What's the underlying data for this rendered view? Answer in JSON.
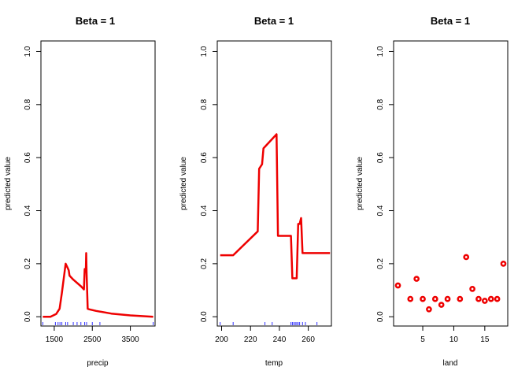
{
  "chart_data": [
    {
      "type": "line",
      "title": "Beta = 1",
      "xlabel": "precip",
      "ylabel": "predicted value",
      "xlim": [
        1150,
        4150
      ],
      "ylim": [
        -0.035,
        1.04
      ],
      "xticks": [
        1500,
        2500,
        3500
      ],
      "yticks": [
        0.0,
        0.2,
        0.4,
        0.6,
        0.8,
        1.0
      ],
      "ytick_labels": [
        "0.0",
        "0.2",
        "0.4",
        "0.6",
        "0.8",
        "1.0"
      ],
      "series": [
        {
          "x": [
            1200,
            1400,
            1550,
            1640,
            1700,
            1800,
            1850,
            1880,
            1900,
            2000,
            2200,
            2280,
            2300,
            2310,
            2330,
            2340,
            2350,
            2380,
            2420,
            2600,
            3000,
            3500,
            4100
          ],
          "y": [
            0.0,
            0.0,
            0.01,
            0.03,
            0.09,
            0.2,
            0.185,
            0.175,
            0.155,
            0.14,
            0.115,
            0.103,
            0.18,
            0.18,
            0.17,
            0.24,
            0.165,
            0.03,
            0.028,
            0.022,
            0.012,
            0.005,
            0.0
          ]
        }
      ],
      "rug": [
        1200,
        1530,
        1600,
        1650,
        1700,
        1800,
        1850,
        2000,
        2100,
        2200,
        2300,
        2350,
        2500,
        2700,
        4100
      ]
    },
    {
      "type": "line",
      "title": "Beta = 1",
      "xlabel": "temp",
      "ylabel": "predicted value",
      "xlim": [
        197,
        276
      ],
      "ylim": [
        -0.035,
        1.04
      ],
      "xticks": [
        200,
        220,
        240,
        260
      ],
      "yticks": [
        0.0,
        0.2,
        0.4,
        0.6,
        0.8,
        1.0
      ],
      "ytick_labels": [
        "0.0",
        "0.2",
        "0.4",
        "0.6",
        "0.8",
        "1.0"
      ],
      "series": [
        {
          "x": [
            199,
            208,
            225,
            226,
            228,
            229,
            238,
            239,
            248,
            249,
            252,
            253,
            254,
            255,
            256,
            257,
            258,
            270,
            275
          ],
          "y": [
            0.232,
            0.232,
            0.322,
            0.558,
            0.575,
            0.635,
            0.688,
            0.305,
            0.305,
            0.145,
            0.145,
            0.35,
            0.35,
            0.372,
            0.24,
            0.24,
            0.24,
            0.24,
            0.24
          ]
        }
      ],
      "rug": [
        199,
        208,
        230,
        235,
        248,
        249,
        250,
        251,
        252,
        253,
        254,
        256,
        258,
        266
      ]
    },
    {
      "type": "scatter",
      "title": "Beta = 1",
      "xlabel": "land",
      "ylabel": "predicted value",
      "xlim": [
        0.3,
        18.7
      ],
      "ylim": [
        -0.035,
        1.04
      ],
      "xticks": [
        5,
        10,
        15
      ],
      "yticks": [
        0.0,
        0.2,
        0.4,
        0.6,
        0.8,
        1.0
      ],
      "ytick_labels": [
        "0.0",
        "0.2",
        "0.4",
        "0.6",
        "0.8",
        "1.0"
      ],
      "series": [
        {
          "x": [
            1,
            3,
            4,
            5,
            6,
            7,
            8,
            9,
            11,
            12,
            13,
            14,
            15,
            16,
            17,
            18
          ],
          "y": [
            0.118,
            0.067,
            0.143,
            0.067,
            0.028,
            0.067,
            0.045,
            0.067,
            0.067,
            0.225,
            0.105,
            0.067,
            0.06,
            0.067,
            0.067,
            0.2
          ]
        }
      ]
    }
  ]
}
